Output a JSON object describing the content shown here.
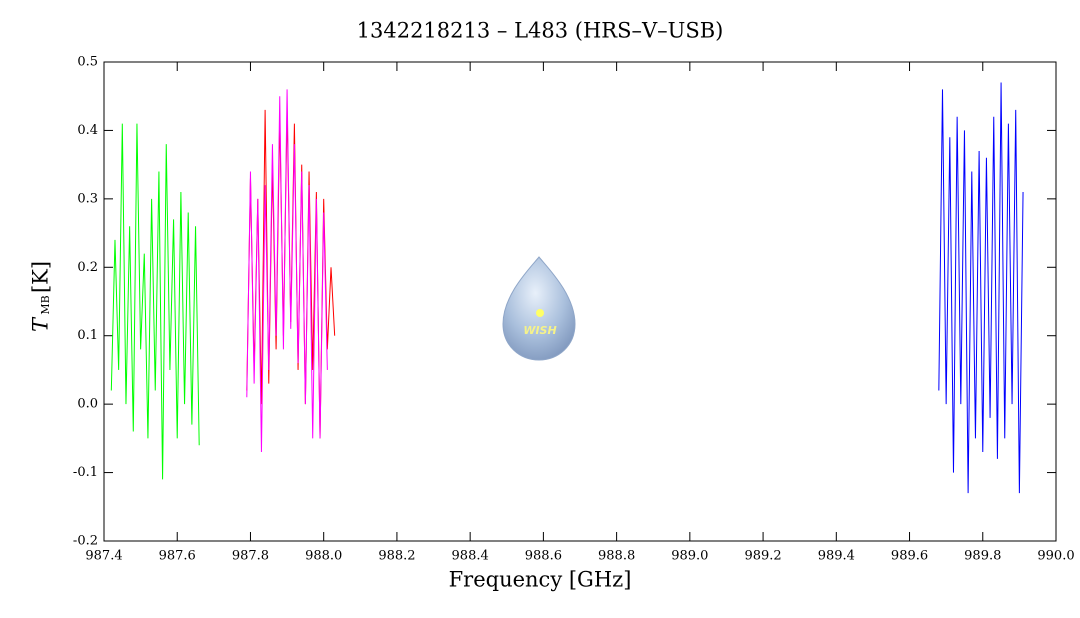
{
  "chart_data": {
    "type": "line",
    "title": "1342218213 – L483 (HRS–V–USB)",
    "xlabel": "Frequency [GHz]",
    "ylabel": {
      "symbol": "T",
      "subscript": "MB",
      "unit": "[K]"
    },
    "logo_text": "WISH",
    "xlim": [
      987.4,
      990.0
    ],
    "ylim": [
      -0.2,
      0.5
    ],
    "xticks": [
      987.4,
      987.6,
      987.8,
      {
        "value": 988,
        "label": "988.0"
      },
      988.2,
      988.4,
      988.6,
      988.8,
      {
        "value": 989,
        "label": "989.0"
      },
      989.2,
      989.4,
      989.6,
      989.8,
      {
        "value": 990,
        "label": "990.0"
      }
    ],
    "yticks": [
      -0.2,
      -0.1,
      {
        "value": 0,
        "label": "0.0"
      },
      0.1,
      0.2,
      0.3,
      0.4,
      0.5
    ],
    "series": [
      {
        "color": "#00ff00",
        "x": [
          987.42,
          987.43,
          987.44,
          987.45,
          987.46,
          987.47,
          987.48,
          987.49,
          987.5,
          987.51,
          987.52,
          987.53,
          987.54,
          987.55,
          987.56,
          987.57,
          987.58,
          987.59,
          987.6,
          987.61,
          987.62,
          987.63,
          987.64,
          987.65,
          987.66
        ],
        "values": [
          0.02,
          0.24,
          0.05,
          0.41,
          0.0,
          0.26,
          -0.04,
          0.41,
          0.08,
          0.22,
          -0.05,
          0.3,
          0.02,
          0.34,
          -0.11,
          0.38,
          0.05,
          0.27,
          -0.05,
          0.31,
          0.0,
          0.28,
          -0.03,
          0.26,
          -0.06
        ]
      },
      {
        "color": "#ff0000",
        "x": [
          987.79,
          987.8,
          987.81,
          987.82,
          987.83,
          987.84,
          987.85,
          987.86,
          987.87,
          987.88,
          987.89,
          987.9,
          987.91,
          987.92,
          987.93,
          987.94,
          987.95,
          987.96,
          987.97,
          987.98,
          987.99,
          988.0,
          988.01,
          988.02,
          988.03
        ],
        "values": [
          0.02,
          0.33,
          0.05,
          0.3,
          0.0,
          0.43,
          0.03,
          0.35,
          0.08,
          0.42,
          0.1,
          0.43,
          0.12,
          0.41,
          0.05,
          0.35,
          0.0,
          0.34,
          0.05,
          0.31,
          -0.05,
          0.3,
          0.08,
          0.2,
          0.1
        ]
      },
      {
        "color": "#ff00ff",
        "x": [
          987.79,
          987.8,
          987.81,
          987.82,
          987.83,
          987.84,
          987.85,
          987.86,
          987.87,
          987.88,
          987.89,
          987.9,
          987.91,
          987.92,
          987.93,
          987.94,
          987.95,
          987.96,
          987.97,
          987.98,
          987.99,
          988.0,
          988.01
        ],
        "values": [
          0.01,
          0.34,
          0.03,
          0.3,
          -0.07,
          0.32,
          0.05,
          0.38,
          0.1,
          0.45,
          0.08,
          0.46,
          0.11,
          0.38,
          0.06,
          0.34,
          0.0,
          0.32,
          -0.05,
          0.3,
          -0.05,
          0.28,
          0.05
        ]
      },
      {
        "color": "#0000ff",
        "x": [
          989.68,
          989.69,
          989.7,
          989.71,
          989.72,
          989.73,
          989.74,
          989.75,
          989.76,
          989.77,
          989.78,
          989.79,
          989.8,
          989.81,
          989.82,
          989.83,
          989.84,
          989.85,
          989.86,
          989.87,
          989.88,
          989.89,
          989.9,
          989.91
        ],
        "values": [
          0.02,
          0.46,
          0.0,
          0.39,
          -0.1,
          0.42,
          0.0,
          0.4,
          -0.13,
          0.34,
          -0.05,
          0.37,
          -0.07,
          0.36,
          -0.02,
          0.42,
          -0.08,
          0.47,
          -0.05,
          0.41,
          0.0,
          0.43,
          -0.13,
          0.31
        ]
      }
    ]
  }
}
